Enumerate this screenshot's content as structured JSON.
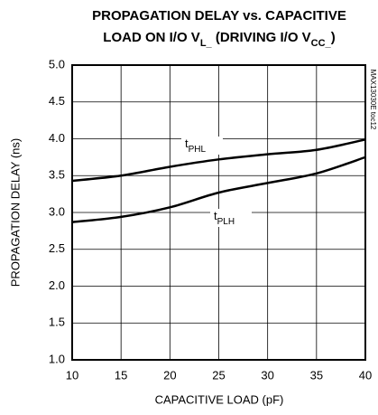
{
  "chart_data": {
    "type": "line",
    "title": {
      "line1": "PROPAGATION DELAY vs. CAPACITIVE",
      "line2": [
        {
          "text": "LOAD ON I/O V"
        },
        {
          "text": "L_",
          "sub": true
        },
        {
          "text": " (DRIVING I/O V"
        },
        {
          "text": "CC_",
          "sub": true
        },
        {
          "text": ")"
        }
      ]
    },
    "x_label": "CAPACITIVE LOAD (pF)",
    "y_label": "PROPAGATION DELAY (ns)",
    "watermark": "MAX13030E toc12",
    "x": [
      10,
      15,
      20,
      25,
      30,
      35,
      40
    ],
    "series": [
      {
        "label": {
          "main": "t",
          "sub": "PHL"
        },
        "color": "#000000",
        "values": [
          3.43,
          3.5,
          3.62,
          3.72,
          3.79,
          3.85,
          3.99
        ]
      },
      {
        "label": {
          "main": "t",
          "sub": "PLH"
        },
        "color": "#000000",
        "values": [
          2.87,
          2.94,
          3.07,
          3.27,
          3.4,
          3.53,
          3.75
        ]
      }
    ],
    "xlim": [
      10,
      40
    ],
    "xticks": [
      10,
      15,
      20,
      25,
      30,
      35,
      40
    ],
    "ylim": [
      1,
      5
    ],
    "yticks": [
      {
        "value": 1,
        "label": "1.0"
      },
      {
        "value": 1.5,
        "label": "1.5"
      },
      {
        "value": 2,
        "label": "2.0"
      },
      {
        "value": 2.5,
        "label": "2.5"
      },
      {
        "value": 3,
        "label": "3.0"
      },
      {
        "value": 3.5,
        "label": "3.5"
      },
      {
        "value": 4,
        "label": "4.0"
      },
      {
        "value": 4.5,
        "label": "4.5"
      },
      {
        "value": 5,
        "label": "5.0"
      }
    ],
    "grid": true
  }
}
